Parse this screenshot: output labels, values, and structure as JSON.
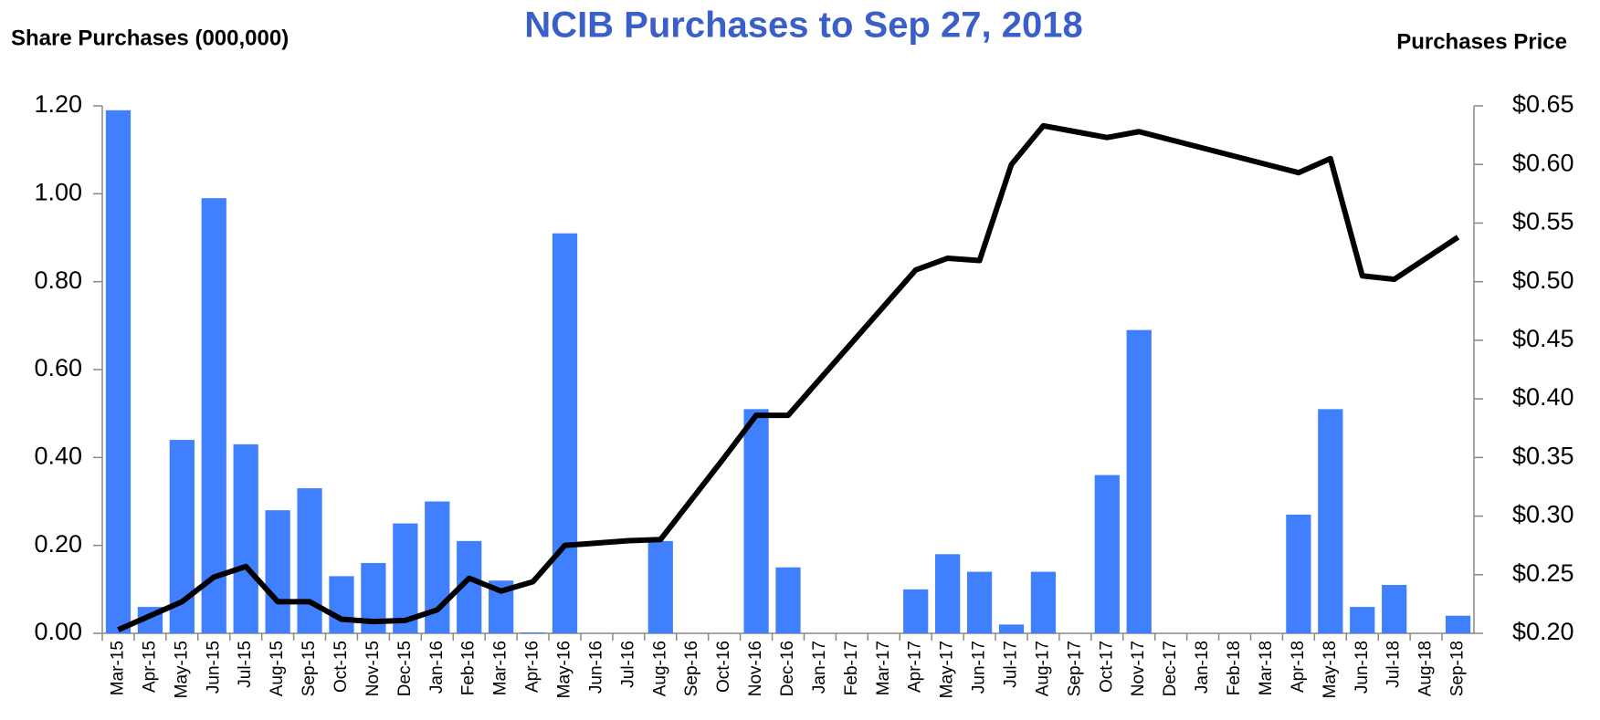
{
  "chart_data": {
    "type": "bar_line",
    "title": "NCIB Purchases to Sep 27, 2018",
    "y_axis_label": "Share Purchases (000,000)",
    "y2_axis_label": "Purchases Price",
    "categories": [
      "Mar-15",
      "Apr-15",
      "May-15",
      "Jun-15",
      "Jul-15",
      "Aug-15",
      "Sep-15",
      "Oct-15",
      "Nov-15",
      "Dec-15",
      "Jan-16",
      "Feb-16",
      "Mar-16",
      "Apr-16",
      "May-16",
      "Jun-16",
      "Jul-16",
      "Aug-16",
      "Sep-16",
      "Oct-16",
      "Nov-16",
      "Dec-16",
      "Jan-17",
      "Feb-17",
      "Mar-17",
      "Apr-17",
      "May-17",
      "Jun-17",
      "Jul-17",
      "Aug-17",
      "Sep-17",
      "Oct-17",
      "Nov-17",
      "Dec-17",
      "Jan-18",
      "Feb-18",
      "Mar-18",
      "Apr-18",
      "May-18",
      "Jun-18",
      "Jul-18",
      "Aug-18",
      "Sep-18"
    ],
    "series": [
      {
        "name": "Share Purchases",
        "type": "bar",
        "color": "#4080ff",
        "axis": "y",
        "values": [
          1.19,
          0.06,
          0.44,
          0.99,
          0.43,
          0.28,
          0.33,
          0.13,
          0.16,
          0.25,
          0.3,
          0.21,
          0.12,
          0.002,
          0.91,
          0,
          0,
          0.21,
          0,
          0,
          0.51,
          0.15,
          0,
          0,
          0,
          0.1,
          0.18,
          0.14,
          0.02,
          0.14,
          0,
          0.36,
          0.69,
          0,
          0,
          0,
          0,
          0.27,
          0.51,
          0.06,
          0.11,
          0,
          0.04
        ]
      },
      {
        "name": "Purchases Price",
        "type": "line",
        "color": "#000000",
        "axis": "y2",
        "values": [
          0.203,
          0.215,
          0.227,
          0.248,
          0.257,
          0.227,
          0.227,
          0.212,
          0.21,
          0.211,
          0.22,
          0.247,
          0.236,
          0.244,
          0.275,
          0.277,
          0.279,
          0.28,
          0.315,
          0.35,
          0.386,
          0.386,
          0.417,
          0.448,
          0.479,
          0.51,
          0.52,
          0.518,
          0.6,
          0.633,
          0.628,
          0.623,
          0.628,
          0.621,
          0.614,
          0.607,
          0.6,
          0.593,
          0.605,
          0.505,
          0.502,
          0.52,
          0.538
        ]
      }
    ],
    "ylim": [
      0,
      1.2
    ],
    "yticks": [
      {
        "value": 0,
        "label": "0.00"
      },
      {
        "value": 0.2,
        "label": "0.20"
      },
      {
        "value": 0.4,
        "label": "0.40"
      },
      {
        "value": 0.6,
        "label": "0.60"
      },
      {
        "value": 0.8,
        "label": "0.80"
      },
      {
        "value": 1,
        "label": "1.00"
      },
      {
        "value": 1.2,
        "label": "1.20"
      }
    ],
    "y2lim": [
      0.2,
      0.65
    ],
    "y2ticks": [
      {
        "value": 0.2,
        "label": "$0.20"
      },
      {
        "value": 0.25,
        "label": "$0.25"
      },
      {
        "value": 0.3,
        "label": "$0.30"
      },
      {
        "value": 0.35,
        "label": "$0.35"
      },
      {
        "value": 0.4,
        "label": "$0.40"
      },
      {
        "value": 0.45,
        "label": "$0.45"
      },
      {
        "value": 0.5,
        "label": "$0.50"
      },
      {
        "value": 0.55,
        "label": "$0.55"
      },
      {
        "value": 0.6,
        "label": "$0.60"
      },
      {
        "value": 0.65,
        "label": "$0.65"
      }
    ]
  }
}
